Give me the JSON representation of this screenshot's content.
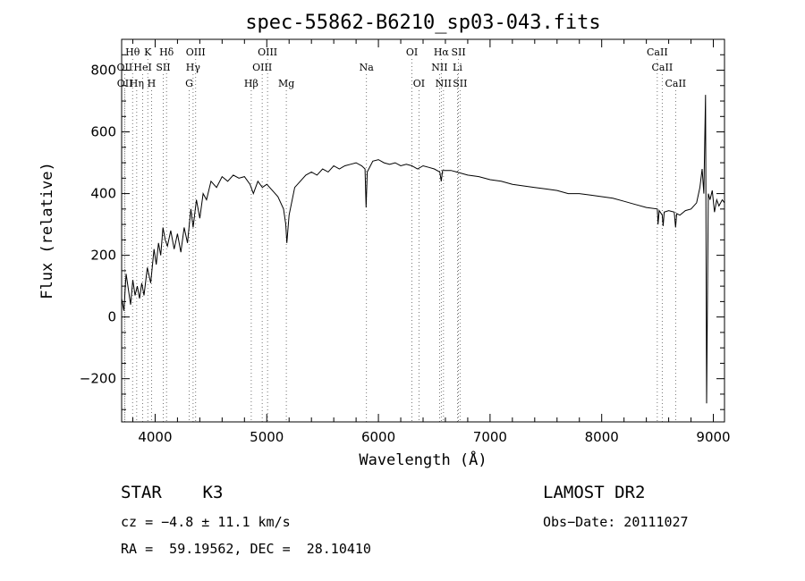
{
  "chart_data": {
    "type": "line",
    "title": "spec-55862-B6210_sp03-043.fits",
    "xlabel": "Wavelength (Å)",
    "ylabel": "Flux (relative)",
    "xlim": [
      3700,
      9100
    ],
    "ylim": [
      -340,
      900
    ],
    "xticks": [
      4000,
      5000,
      6000,
      7000,
      8000,
      9000
    ],
    "yticks": [
      -200,
      0,
      200,
      400,
      600,
      800
    ],
    "grid": false,
    "series": [
      {
        "points": [
          [
            3700,
            60
          ],
          [
            3720,
            20
          ],
          [
            3740,
            140
          ],
          [
            3760,
            90
          ],
          [
            3780,
            40
          ],
          [
            3800,
            120
          ],
          [
            3820,
            70
          ],
          [
            3840,
            100
          ],
          [
            3860,
            60
          ],
          [
            3880,
            110
          ],
          [
            3900,
            70
          ],
          [
            3930,
            160
          ],
          [
            3960,
            110
          ],
          [
            3990,
            220
          ],
          [
            4010,
            170
          ],
          [
            4030,
            240
          ],
          [
            4050,
            200
          ],
          [
            4070,
            290
          ],
          [
            4090,
            250
          ],
          [
            4110,
            230
          ],
          [
            4140,
            280
          ],
          [
            4170,
            220
          ],
          [
            4200,
            270
          ],
          [
            4230,
            210
          ],
          [
            4260,
            290
          ],
          [
            4290,
            240
          ],
          [
            4320,
            350
          ],
          [
            4340,
            290
          ],
          [
            4370,
            380
          ],
          [
            4400,
            320
          ],
          [
            4430,
            400
          ],
          [
            4460,
            380
          ],
          [
            4500,
            440
          ],
          [
            4550,
            420
          ],
          [
            4600,
            455
          ],
          [
            4650,
            440
          ],
          [
            4700,
            460
          ],
          [
            4750,
            450
          ],
          [
            4800,
            455
          ],
          [
            4850,
            430
          ],
          [
            4880,
            400
          ],
          [
            4920,
            440
          ],
          [
            4960,
            420
          ],
          [
            5000,
            430
          ],
          [
            5050,
            410
          ],
          [
            5100,
            390
          ],
          [
            5150,
            350
          ],
          [
            5170,
            300
          ],
          [
            5180,
            240
          ],
          [
            5200,
            330
          ],
          [
            5250,
            420
          ],
          [
            5300,
            440
          ],
          [
            5350,
            460
          ],
          [
            5400,
            470
          ],
          [
            5450,
            460
          ],
          [
            5500,
            480
          ],
          [
            5550,
            470
          ],
          [
            5600,
            490
          ],
          [
            5650,
            480
          ],
          [
            5700,
            490
          ],
          [
            5750,
            495
          ],
          [
            5800,
            500
          ],
          [
            5850,
            490
          ],
          [
            5880,
            480
          ],
          [
            5890,
            355
          ],
          [
            5900,
            470
          ],
          [
            5950,
            505
          ],
          [
            6000,
            510
          ],
          [
            6050,
            500
          ],
          [
            6100,
            495
          ],
          [
            6150,
            500
          ],
          [
            6200,
            490
          ],
          [
            6250,
            495
          ],
          [
            6300,
            490
          ],
          [
            6350,
            480
          ],
          [
            6400,
            490
          ],
          [
            6450,
            485
          ],
          [
            6500,
            480
          ],
          [
            6550,
            470
          ],
          [
            6563,
            440
          ],
          [
            6575,
            475
          ],
          [
            6650,
            475
          ],
          [
            6700,
            470
          ],
          [
            6800,
            460
          ],
          [
            6900,
            455
          ],
          [
            7000,
            445
          ],
          [
            7100,
            440
          ],
          [
            7200,
            430
          ],
          [
            7300,
            425
          ],
          [
            7400,
            420
          ],
          [
            7500,
            415
          ],
          [
            7600,
            410
          ],
          [
            7700,
            400
          ],
          [
            7800,
            400
          ],
          [
            7900,
            395
          ],
          [
            8000,
            390
          ],
          [
            8100,
            385
          ],
          [
            8200,
            375
          ],
          [
            8300,
            365
          ],
          [
            8400,
            355
          ],
          [
            8498,
            350
          ],
          [
            8505,
            300
          ],
          [
            8515,
            345
          ],
          [
            8542,
            330
          ],
          [
            8550,
            295
          ],
          [
            8560,
            340
          ],
          [
            8600,
            345
          ],
          [
            8650,
            340
          ],
          [
            8662,
            290
          ],
          [
            8672,
            335
          ],
          [
            8700,
            330
          ],
          [
            8750,
            345
          ],
          [
            8800,
            350
          ],
          [
            8850,
            370
          ],
          [
            8880,
            420
          ],
          [
            8900,
            480
          ],
          [
            8915,
            400
          ],
          [
            8930,
            720
          ],
          [
            8940,
            -280
          ],
          [
            8955,
            400
          ],
          [
            8970,
            380
          ],
          [
            8990,
            410
          ],
          [
            9010,
            340
          ],
          [
            9030,
            380
          ],
          [
            9050,
            360
          ],
          [
            9080,
            380
          ],
          [
            9100,
            370
          ]
        ]
      }
    ]
  },
  "lines": [
    {
      "label": "Hθ",
      "x": 3798,
      "row": 1
    },
    {
      "label": "K",
      "x": 3934,
      "row": 1
    },
    {
      "label": "Hδ",
      "x": 4102,
      "row": 1
    },
    {
      "label": "OIII",
      "x": 4363,
      "row": 1
    },
    {
      "label": "OIII",
      "x": 5007,
      "row": 1
    },
    {
      "label": "OI",
      "x": 6300,
      "row": 1
    },
    {
      "label": "Hα",
      "x": 6563,
      "row": 1
    },
    {
      "label": "SII",
      "x": 6717,
      "row": 1
    },
    {
      "label": "CaII",
      "x": 8498,
      "row": 1
    },
    {
      "label": "OII",
      "x": 3727,
      "row": 2
    },
    {
      "label": "HeI",
      "x": 3889,
      "row": 2
    },
    {
      "label": "SII",
      "x": 4072,
      "row": 2
    },
    {
      "label": "Hγ",
      "x": 4340,
      "row": 2
    },
    {
      "label": "OIII",
      "x": 4959,
      "row": 2
    },
    {
      "label": "Na",
      "x": 5893,
      "row": 2
    },
    {
      "label": "NII",
      "x": 6548,
      "row": 2
    },
    {
      "label": "Li",
      "x": 6708,
      "row": 2
    },
    {
      "label": "CaII",
      "x": 8542,
      "row": 2
    },
    {
      "label": "OII",
      "x": 3729,
      "row": 3
    },
    {
      "label": "Hη",
      "x": 3835,
      "row": 3
    },
    {
      "label": "H",
      "x": 3968,
      "row": 3
    },
    {
      "label": "G",
      "x": 4305,
      "row": 3
    },
    {
      "label": "Hβ",
      "x": 4861,
      "row": 3
    },
    {
      "label": "Mg",
      "x": 5175,
      "row": 3
    },
    {
      "label": "OI",
      "x": 6363,
      "row": 3
    },
    {
      "label": "NII",
      "x": 6583,
      "row": 3
    },
    {
      "label": "SII",
      "x": 6731,
      "row": 3
    },
    {
      "label": "CaII",
      "x": 8662,
      "row": 3
    }
  ],
  "info": {
    "obj_class": "STAR    K3",
    "survey": "LAMOST DR2",
    "cz": "cz = −4.8 ± 11.1 km/s",
    "obs_date": "Obs−Date: 20111027",
    "radec": "RA =  59.19562, DEC =  28.10410"
  }
}
